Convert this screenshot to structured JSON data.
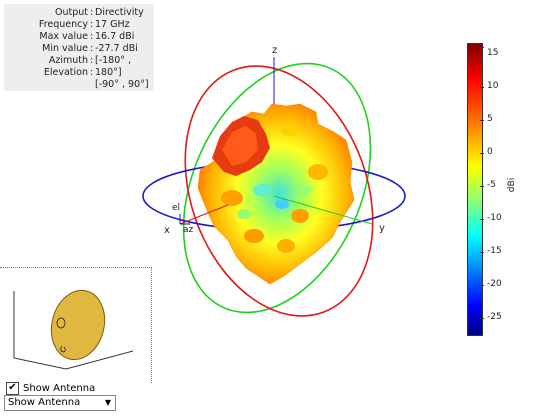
{
  "info_panel": {
    "rows": [
      {
        "key": "Output",
        "value": "Directivity"
      },
      {
        "key": "Frequency",
        "value": "17 GHz"
      },
      {
        "key": "Max value",
        "value": "16.7 dBi"
      },
      {
        "key": "Min value",
        "value": "-27.7 dBi"
      },
      {
        "key": "Azimuth",
        "value": "[-180° ,"
      },
      {
        "key": "Elevation",
        "value": "180°]"
      }
    ],
    "extra_line": "[-90° , 90°]"
  },
  "axes": {
    "x": "x",
    "y": "y",
    "z": "z",
    "el": "el",
    "az": "az"
  },
  "colorbar": {
    "unit": "dBi",
    "ticks": [
      "15",
      "10",
      "5",
      "0",
      "-5",
      "-10",
      "-15",
      "-20",
      "-25"
    ],
    "range": [
      -27.7,
      16.7
    ]
  },
  "antenna_panel": {
    "checkbox_label": "Show Antenna",
    "checked": true,
    "dropdown_value": "Show Antenna"
  }
}
